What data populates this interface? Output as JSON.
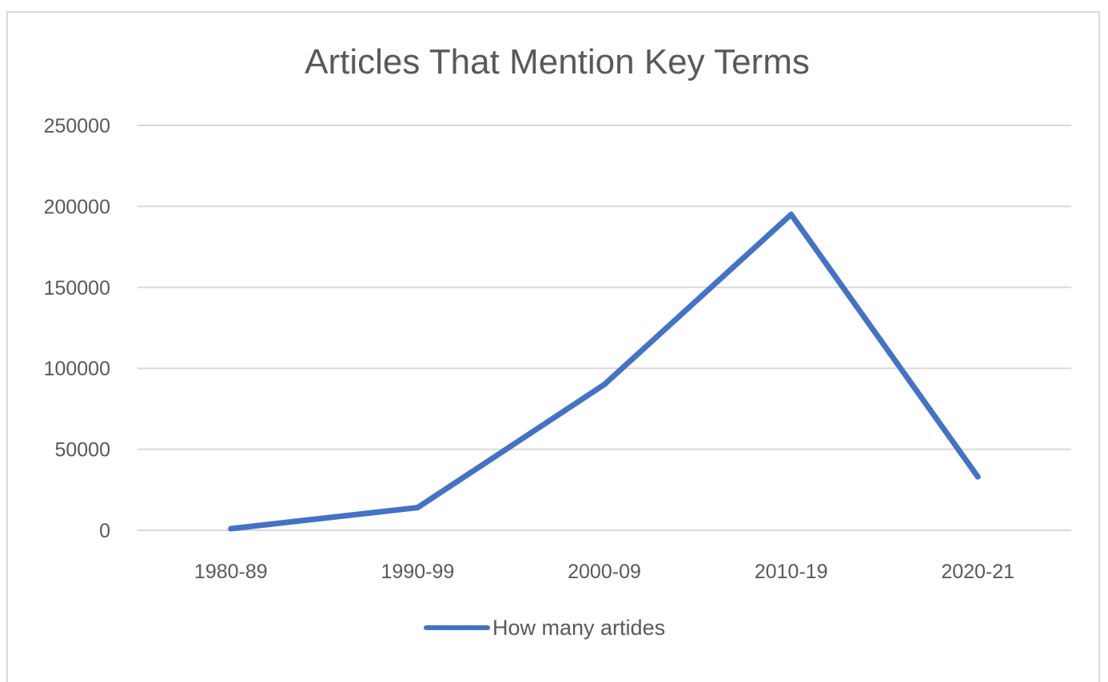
{
  "chart_data": {
    "type": "line",
    "title": "Articles That Mention Key Terms",
    "categories": [
      "1980-89",
      "1990-99",
      "2000-09",
      "2010-19",
      "2020-21"
    ],
    "series": [
      {
        "name": "How many artides",
        "values": [
          1000,
          14000,
          90000,
          195000,
          33000
        ],
        "color": "#4472c4"
      }
    ],
    "y_ticks": [
      "0",
      "50000",
      "100000",
      "150000",
      "200000",
      "250000"
    ],
    "ylim": [
      0,
      250000
    ],
    "grid": "horizontal",
    "legend_position": "bottom-center"
  }
}
